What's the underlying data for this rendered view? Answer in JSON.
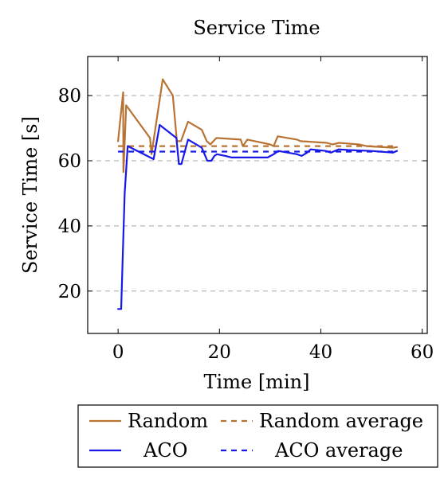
{
  "chart_data": {
    "type": "line",
    "title": "Service Time",
    "xlabel": "Time [min]",
    "ylabel": "Service Time [s]",
    "xlim": [
      -6,
      61
    ],
    "ylim": [
      7,
      92
    ],
    "xticks": [
      0,
      20,
      40,
      60
    ],
    "yticks": [
      20,
      40,
      60,
      80
    ],
    "grid": "horizontal dashed at y ticks",
    "legend_position": "below plot",
    "series": [
      {
        "name": "Random",
        "style": "solid",
        "color": "#b87333",
        "points": [
          [
            0,
            66
          ],
          [
            1,
            81
          ],
          [
            1.05,
            56.5
          ],
          [
            1.2,
            62
          ],
          [
            1.6,
            77
          ],
          [
            6.3,
            67
          ],
          [
            6.6,
            62
          ],
          [
            8.8,
            85
          ],
          [
            10.8,
            80
          ],
          [
            11.6,
            66
          ],
          [
            12.4,
            66
          ],
          [
            13.8,
            72
          ],
          [
            16.5,
            69.5
          ],
          [
            17.5,
            66
          ],
          [
            18.2,
            65
          ],
          [
            18.8,
            66
          ],
          [
            19.4,
            67
          ],
          [
            24.2,
            66.5
          ],
          [
            24.6,
            64.5
          ],
          [
            25.5,
            66.5
          ],
          [
            30,
            65
          ],
          [
            30.7,
            64.5
          ],
          [
            31.5,
            67.5
          ],
          [
            35.3,
            66.5
          ],
          [
            36,
            66
          ],
          [
            41.2,
            65.5
          ],
          [
            42.3,
            65
          ],
          [
            43.6,
            65.5
          ],
          [
            47.5,
            65
          ],
          [
            49,
            64.5
          ],
          [
            54.3,
            64
          ],
          [
            55,
            64.2
          ]
        ]
      },
      {
        "name": "Random average",
        "style": "dashed",
        "color": "#b87333",
        "points": [
          [
            0,
            64.5
          ],
          [
            55,
            64.5
          ]
        ]
      },
      {
        "name": "ACO",
        "style": "solid",
        "color": "#1818e8",
        "points": [
          [
            0,
            14.5
          ],
          [
            0.6,
            14.5
          ],
          [
            0.9,
            30
          ],
          [
            1.3,
            50
          ],
          [
            1.9,
            64.5
          ],
          [
            7,
            60.5
          ],
          [
            8.2,
            71
          ],
          [
            11.5,
            67
          ],
          [
            12,
            59
          ],
          [
            12.5,
            59
          ],
          [
            13.8,
            66.5
          ],
          [
            16.5,
            64
          ],
          [
            17.6,
            60
          ],
          [
            18.4,
            60
          ],
          [
            19,
            61.5
          ],
          [
            19.5,
            62
          ],
          [
            21.2,
            61.5
          ],
          [
            22.4,
            61
          ],
          [
            24,
            61
          ],
          [
            29.5,
            61
          ],
          [
            30.7,
            62
          ],
          [
            31.6,
            63
          ],
          [
            35.3,
            62
          ],
          [
            36.2,
            61.5
          ],
          [
            37.3,
            62.5
          ],
          [
            38,
            63.5
          ],
          [
            41,
            63
          ],
          [
            42,
            62.5
          ],
          [
            43.5,
            63.5
          ],
          [
            45.4,
            63.3
          ],
          [
            50,
            63
          ],
          [
            54.2,
            62.5
          ],
          [
            55,
            63
          ]
        ]
      },
      {
        "name": "ACO average",
        "style": "dashed",
        "color": "#1818e8",
        "points": [
          [
            0,
            62.8
          ],
          [
            55,
            62.8
          ]
        ]
      }
    ]
  }
}
